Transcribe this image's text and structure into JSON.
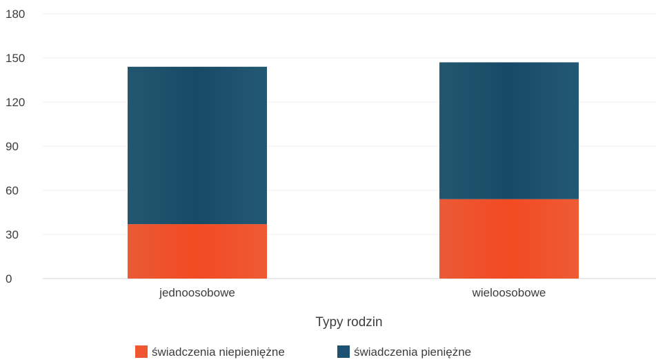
{
  "chart_data": {
    "type": "bar",
    "stacked": true,
    "categories": [
      "jednoosobowe",
      "wieloosobowe"
    ],
    "series": [
      {
        "name": "świadczenia niepieniężne",
        "values": [
          37,
          54
        ],
        "color": "#f0562f"
      },
      {
        "name": "świadczenia pieniężne",
        "values": [
          107,
          93
        ],
        "color": "#1d5172"
      }
    ],
    "xlabel": "Typy rodzin",
    "ylabel": "",
    "ylim": [
      0,
      180
    ],
    "yticks": [
      0,
      30,
      60,
      90,
      120,
      150,
      180
    ],
    "grid": true,
    "legend": "bottom"
  }
}
